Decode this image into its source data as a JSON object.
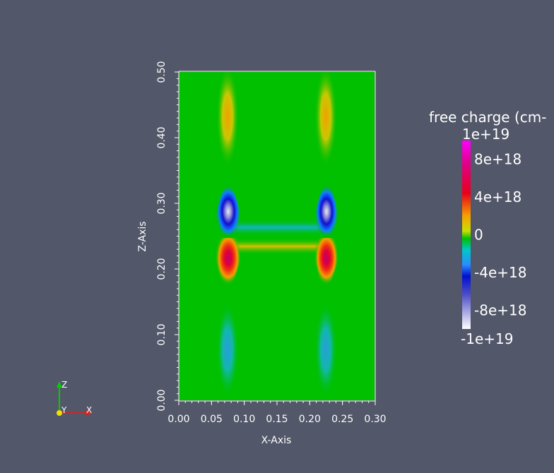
{
  "colors": {
    "background": "#525769",
    "field_base": "#00c000",
    "positive_max": "#ff00ff",
    "negative_min": "#ffffff"
  },
  "chart_data": {
    "type": "heatmap",
    "title": "",
    "xlabel": "X-Axis",
    "ylabel": "Z-Axis",
    "xlim": [
      0.0,
      0.3
    ],
    "ylim": [
      0.0,
      0.5
    ],
    "x_ticks": [
      "0.00",
      "0.05",
      "0.10",
      "0.15",
      "0.20",
      "0.25",
      "0.30"
    ],
    "y_ticks": [
      "0.00",
      "0.10",
      "0.20",
      "0.30",
      "0.40",
      "0.50"
    ],
    "colorbar": {
      "title": "free charge (cm-",
      "range": [
        -1e+19,
        1e+19
      ],
      "labels": [
        "1e+19",
        "8e+18",
        "4e+18",
        "0",
        "-4e+18",
        "-8e+18",
        "-1e+19"
      ],
      "label_values": [
        1e+19,
        8e+18,
        4e+18,
        0,
        -4e+18,
        -8e+18,
        -1e+19
      ]
    },
    "regions": [
      {
        "name": "left-top-lobe",
        "x": 0.075,
        "y": 0.42,
        "sign": "positive"
      },
      {
        "name": "right-top-lobe",
        "x": 0.225,
        "y": 0.42,
        "sign": "positive"
      },
      {
        "name": "left-bottom-lobe",
        "x": 0.075,
        "y": 0.07,
        "sign": "negative"
      },
      {
        "name": "right-bottom-lobe",
        "x": 0.225,
        "y": 0.07,
        "sign": "negative"
      },
      {
        "name": "left-negative-core",
        "x": 0.075,
        "y": 0.285,
        "sign": "negative"
      },
      {
        "name": "right-negative-core",
        "x": 0.225,
        "y": 0.285,
        "sign": "negative"
      },
      {
        "name": "left-positive-core",
        "x": 0.075,
        "y": 0.215,
        "sign": "positive"
      },
      {
        "name": "right-positive-core",
        "x": 0.225,
        "y": 0.215,
        "sign": "positive"
      },
      {
        "name": "bridge-negative",
        "x": 0.15,
        "y": 0.265,
        "sign": "negative"
      },
      {
        "name": "bridge-positive",
        "x": 0.15,
        "y": 0.235,
        "sign": "positive"
      }
    ]
  },
  "orientation_axes": {
    "labels": [
      "Z",
      "Y",
      "X"
    ]
  }
}
